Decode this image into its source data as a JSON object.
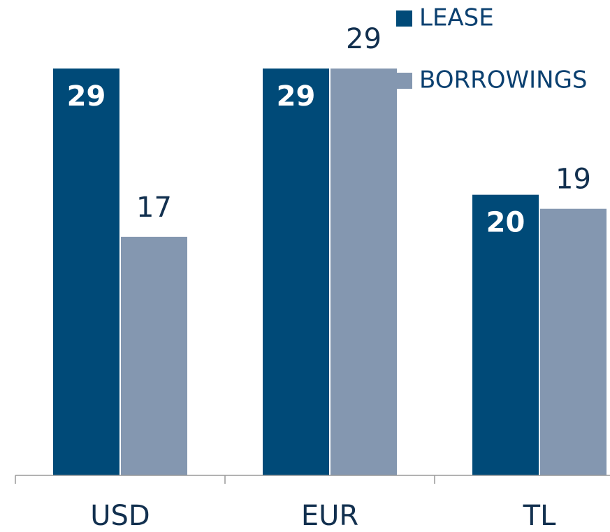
{
  "chart_data": {
    "type": "bar",
    "categories": [
      "USD",
      "EUR",
      "TL"
    ],
    "series": [
      {
        "name": "LEASE",
        "color": "#004a78",
        "values": [
          29,
          29,
          20
        ]
      },
      {
        "name": "BORROWINGS",
        "color": "#8497b0",
        "values": [
          17,
          29,
          19
        ]
      }
    ],
    "legend": "top-right"
  }
}
